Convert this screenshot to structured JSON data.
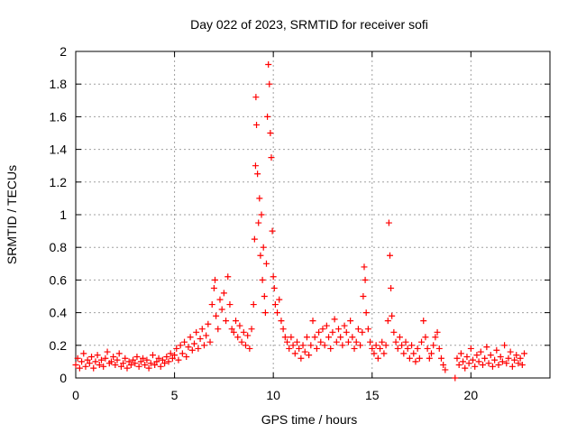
{
  "chart_data": {
    "type": "scatter",
    "title": "Day 022 of 2023, SRMTID for receiver sofi",
    "xlabel": "GPS time / hours",
    "ylabel": "SRMTID / TECUs",
    "xlim": [
      0,
      24
    ],
    "ylim": [
      0,
      2
    ],
    "xticks": [
      "0",
      "5",
      "10",
      "15",
      "20"
    ],
    "yticks": [
      "0",
      "0.2",
      "0.4",
      "0.6",
      "0.8",
      "1",
      "1.2",
      "1.4",
      "1.6",
      "1.8",
      "2"
    ],
    "grid": true,
    "marker": "+",
    "colors": {
      "series": "#ff0000",
      "grid": "#a0a0a0",
      "axis": "#000000"
    },
    "series": [
      {
        "name": "SRMTID",
        "points": [
          [
            0.0,
            0.08
          ],
          [
            0.1,
            0.12
          ],
          [
            0.2,
            0.06
          ],
          [
            0.3,
            0.1
          ],
          [
            0.4,
            0.15
          ],
          [
            0.5,
            0.07
          ],
          [
            0.6,
            0.11
          ],
          [
            0.7,
            0.09
          ],
          [
            0.8,
            0.13
          ],
          [
            0.9,
            0.06
          ],
          [
            1.0,
            0.1
          ],
          [
            1.1,
            0.14
          ],
          [
            1.2,
            0.08
          ],
          [
            1.3,
            0.11
          ],
          [
            1.4,
            0.07
          ],
          [
            1.5,
            0.12
          ],
          [
            1.6,
            0.16
          ],
          [
            1.7,
            0.09
          ],
          [
            1.8,
            0.1
          ],
          [
            1.9,
            0.13
          ],
          [
            2.0,
            0.08
          ],
          [
            2.1,
            0.11
          ],
          [
            2.2,
            0.15
          ],
          [
            2.3,
            0.07
          ],
          [
            2.4,
            0.09
          ],
          [
            2.5,
            0.12
          ],
          [
            2.6,
            0.06
          ],
          [
            2.7,
            0.1
          ],
          [
            2.8,
            0.08
          ],
          [
            2.9,
            0.11
          ],
          [
            3.0,
            0.09
          ],
          [
            3.1,
            0.13
          ],
          [
            3.2,
            0.07
          ],
          [
            3.3,
            0.1
          ],
          [
            3.4,
            0.12
          ],
          [
            3.5,
            0.08
          ],
          [
            3.6,
            0.11
          ],
          [
            3.7,
            0.06
          ],
          [
            3.8,
            0.09
          ],
          [
            3.9,
            0.14
          ],
          [
            4.0,
            0.08
          ],
          [
            4.1,
            0.1
          ],
          [
            4.2,
            0.12
          ],
          [
            4.3,
            0.07
          ],
          [
            4.4,
            0.11
          ],
          [
            4.5,
            0.09
          ],
          [
            4.6,
            0.13
          ],
          [
            4.7,
            0.1
          ],
          [
            4.8,
            0.15
          ],
          [
            4.9,
            0.12
          ],
          [
            5.0,
            0.14
          ],
          [
            5.1,
            0.18
          ],
          [
            5.2,
            0.11
          ],
          [
            5.3,
            0.2
          ],
          [
            5.4,
            0.15
          ],
          [
            5.5,
            0.22
          ],
          [
            5.6,
            0.13
          ],
          [
            5.7,
            0.19
          ],
          [
            5.8,
            0.25
          ],
          [
            5.9,
            0.17
          ],
          [
            6.0,
            0.21
          ],
          [
            6.1,
            0.28
          ],
          [
            6.2,
            0.18
          ],
          [
            6.3,
            0.24
          ],
          [
            6.4,
            0.3
          ],
          [
            6.5,
            0.2
          ],
          [
            6.6,
            0.26
          ],
          [
            6.7,
            0.33
          ],
          [
            6.8,
            0.22
          ],
          [
            6.9,
            0.45
          ],
          [
            7.0,
            0.55
          ],
          [
            7.05,
            0.6
          ],
          [
            7.1,
            0.38
          ],
          [
            7.2,
            0.3
          ],
          [
            7.3,
            0.48
          ],
          [
            7.4,
            0.42
          ],
          [
            7.5,
            0.52
          ],
          [
            7.6,
            0.35
          ],
          [
            7.7,
            0.62
          ],
          [
            7.8,
            0.45
          ],
          [
            7.9,
            0.3
          ],
          [
            8.0,
            0.28
          ],
          [
            8.1,
            0.35
          ],
          [
            8.2,
            0.25
          ],
          [
            8.3,
            0.32
          ],
          [
            8.4,
            0.22
          ],
          [
            8.5,
            0.28
          ],
          [
            8.6,
            0.2
          ],
          [
            8.7,
            0.26
          ],
          [
            8.8,
            0.18
          ],
          [
            8.9,
            0.3
          ],
          [
            9.0,
            0.45
          ],
          [
            9.05,
            0.85
          ],
          [
            9.1,
            1.3
          ],
          [
            9.12,
            1.72
          ],
          [
            9.15,
            1.55
          ],
          [
            9.2,
            1.25
          ],
          [
            9.25,
            0.95
          ],
          [
            9.3,
            1.1
          ],
          [
            9.35,
            0.75
          ],
          [
            9.4,
            1.0
          ],
          [
            9.45,
            0.6
          ],
          [
            9.5,
            0.8
          ],
          [
            9.55,
            0.5
          ],
          [
            9.6,
            0.4
          ],
          [
            9.65,
            0.7
          ],
          [
            9.7,
            1.6
          ],
          [
            9.75,
            1.92
          ],
          [
            9.8,
            1.8
          ],
          [
            9.85,
            1.5
          ],
          [
            9.9,
            1.35
          ],
          [
            9.95,
            0.9
          ],
          [
            10.0,
            0.62
          ],
          [
            10.05,
            0.55
          ],
          [
            10.1,
            0.45
          ],
          [
            10.2,
            0.4
          ],
          [
            10.3,
            0.48
          ],
          [
            10.4,
            0.35
          ],
          [
            10.5,
            0.3
          ],
          [
            10.6,
            0.25
          ],
          [
            10.7,
            0.22
          ],
          [
            10.8,
            0.18
          ],
          [
            10.9,
            0.25
          ],
          [
            11.0,
            0.2
          ],
          [
            11.1,
            0.15
          ],
          [
            11.2,
            0.22
          ],
          [
            11.3,
            0.18
          ],
          [
            11.4,
            0.12
          ],
          [
            11.5,
            0.2
          ],
          [
            11.6,
            0.16
          ],
          [
            11.7,
            0.25
          ],
          [
            11.8,
            0.14
          ],
          [
            11.9,
            0.2
          ],
          [
            12.0,
            0.35
          ],
          [
            12.1,
            0.25
          ],
          [
            12.2,
            0.18
          ],
          [
            12.3,
            0.28
          ],
          [
            12.4,
            0.22
          ],
          [
            12.5,
            0.3
          ],
          [
            12.6,
            0.2
          ],
          [
            12.7,
            0.32
          ],
          [
            12.8,
            0.25
          ],
          [
            12.9,
            0.18
          ],
          [
            13.0,
            0.28
          ],
          [
            13.1,
            0.36
          ],
          [
            13.2,
            0.22
          ],
          [
            13.3,
            0.3
          ],
          [
            13.4,
            0.25
          ],
          [
            13.5,
            0.2
          ],
          [
            13.6,
            0.32
          ],
          [
            13.7,
            0.28
          ],
          [
            13.8,
            0.22
          ],
          [
            13.9,
            0.35
          ],
          [
            14.0,
            0.25
          ],
          [
            14.1,
            0.18
          ],
          [
            14.2,
            0.22
          ],
          [
            14.3,
            0.3
          ],
          [
            14.4,
            0.2
          ],
          [
            14.5,
            0.28
          ],
          [
            14.55,
            0.5
          ],
          [
            14.6,
            0.68
          ],
          [
            14.65,
            0.6
          ],
          [
            14.7,
            0.4
          ],
          [
            14.8,
            0.3
          ],
          [
            14.9,
            0.22
          ],
          [
            15.0,
            0.18
          ],
          [
            15.1,
            0.15
          ],
          [
            15.2,
            0.2
          ],
          [
            15.3,
            0.12
          ],
          [
            15.4,
            0.18
          ],
          [
            15.5,
            0.22
          ],
          [
            15.6,
            0.15
          ],
          [
            15.7,
            0.2
          ],
          [
            15.8,
            0.35
          ],
          [
            15.85,
            0.95
          ],
          [
            15.9,
            0.75
          ],
          [
            15.95,
            0.55
          ],
          [
            16.0,
            0.38
          ],
          [
            16.1,
            0.28
          ],
          [
            16.2,
            0.22
          ],
          [
            16.3,
            0.18
          ],
          [
            16.4,
            0.25
          ],
          [
            16.5,
            0.2
          ],
          [
            16.6,
            0.15
          ],
          [
            16.7,
            0.22
          ],
          [
            16.8,
            0.18
          ],
          [
            16.9,
            0.12
          ],
          [
            17.0,
            0.2
          ],
          [
            17.1,
            0.15
          ],
          [
            17.2,
            0.1
          ],
          [
            17.3,
            0.18
          ],
          [
            17.4,
            0.12
          ],
          [
            17.5,
            0.22
          ],
          [
            17.6,
            0.35
          ],
          [
            17.7,
            0.25
          ],
          [
            17.8,
            0.18
          ],
          [
            17.9,
            0.12
          ],
          [
            18.0,
            0.15
          ],
          [
            18.1,
            0.2
          ],
          [
            18.2,
            0.25
          ],
          [
            18.3,
            0.28
          ],
          [
            18.4,
            0.18
          ],
          [
            18.5,
            0.12
          ],
          [
            18.6,
            0.08
          ],
          [
            18.7,
            0.05
          ],
          [
            19.2,
            0.0
          ],
          [
            19.3,
            0.12
          ],
          [
            19.4,
            0.08
          ],
          [
            19.5,
            0.15
          ],
          [
            19.6,
            0.1
          ],
          [
            19.7,
            0.06
          ],
          [
            19.8,
            0.13
          ],
          [
            19.9,
            0.09
          ],
          [
            20.0,
            0.18
          ],
          [
            20.1,
            0.11
          ],
          [
            20.2,
            0.07
          ],
          [
            20.3,
            0.14
          ],
          [
            20.4,
            0.1
          ],
          [
            20.5,
            0.16
          ],
          [
            20.6,
            0.08
          ],
          [
            20.7,
            0.12
          ],
          [
            20.8,
            0.19
          ],
          [
            20.9,
            0.09
          ],
          [
            21.0,
            0.14
          ],
          [
            21.1,
            0.07
          ],
          [
            21.2,
            0.11
          ],
          [
            21.3,
            0.17
          ],
          [
            21.4,
            0.08
          ],
          [
            21.5,
            0.13
          ],
          [
            21.6,
            0.1
          ],
          [
            21.7,
            0.2
          ],
          [
            21.8,
            0.09
          ],
          [
            21.9,
            0.12
          ],
          [
            22.0,
            0.16
          ],
          [
            22.1,
            0.07
          ],
          [
            22.2,
            0.11
          ],
          [
            22.3,
            0.14
          ],
          [
            22.4,
            0.09
          ],
          [
            22.5,
            0.12
          ],
          [
            22.6,
            0.08
          ],
          [
            22.7,
            0.15
          ]
        ]
      }
    ]
  }
}
